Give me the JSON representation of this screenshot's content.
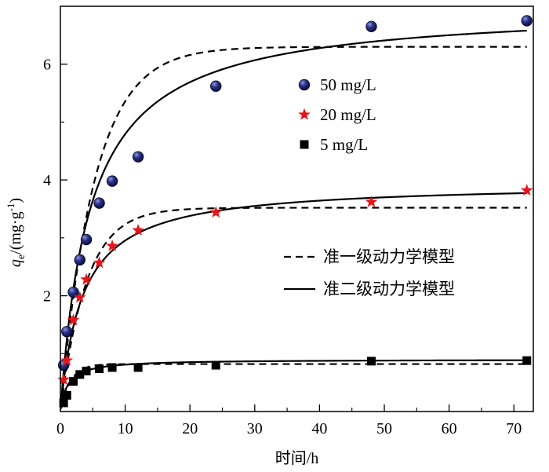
{
  "chart_data": {
    "type": "scatter",
    "xlabel": "时间/h",
    "ylabel": {
      "italic": "q",
      "subscript": "e",
      "unit_open": "/(mg·g",
      "unit_sup": "-1",
      "unit_close": ")"
    },
    "xlim": [
      0,
      73
    ],
    "ylim": [
      0,
      7
    ],
    "xticks": [
      0,
      10,
      20,
      30,
      40,
      50,
      60,
      70
    ],
    "yticks": [
      2,
      4,
      6
    ],
    "legend_position": "upper-middle",
    "series": [
      {
        "name": "50 mg/L",
        "marker": "circle",
        "color": "#1b1f6b",
        "x": [
          0.5,
          1,
          2,
          3,
          4,
          6,
          8,
          12,
          24,
          48,
          72
        ],
        "y": [
          0.8,
          1.38,
          2.06,
          2.62,
          2.97,
          3.6,
          3.98,
          4.4,
          5.62,
          6.65,
          6.75
        ],
        "pfo": {
          "qe": 6.3,
          "k1": 0.19
        },
        "pso": {
          "qe": 7.0,
          "k2": 0.031
        }
      },
      {
        "name": "20 mg/L",
        "marker": "star",
        "color": "#e8141b",
        "x": [
          0.5,
          1,
          2,
          3,
          4,
          6,
          8,
          12,
          24,
          48,
          72
        ],
        "y": [
          0.55,
          0.88,
          1.58,
          1.97,
          2.28,
          2.57,
          2.86,
          3.13,
          3.44,
          3.62,
          3.82
        ],
        "pfo": {
          "qe": 3.52,
          "k1": 0.25
        },
        "pso": {
          "qe": 3.95,
          "k2": 0.075
        }
      },
      {
        "name": "5 mg/L",
        "marker": "square",
        "color": "#000000",
        "x": [
          0.5,
          1,
          2,
          3,
          4,
          6,
          8,
          12,
          24,
          48,
          72
        ],
        "y": [
          0.15,
          0.28,
          0.52,
          0.64,
          0.7,
          0.74,
          0.76,
          0.76,
          0.8,
          0.87,
          0.88
        ],
        "pfo": {
          "qe": 0.82,
          "k1": 0.65
        },
        "pso": {
          "qe": 0.9,
          "k2": 1.0
        }
      }
    ],
    "model_legend": [
      {
        "name": "准一级动力学模型",
        "style": "dashed"
      },
      {
        "name": "准二级动力学模型",
        "style": "solid"
      }
    ]
  }
}
